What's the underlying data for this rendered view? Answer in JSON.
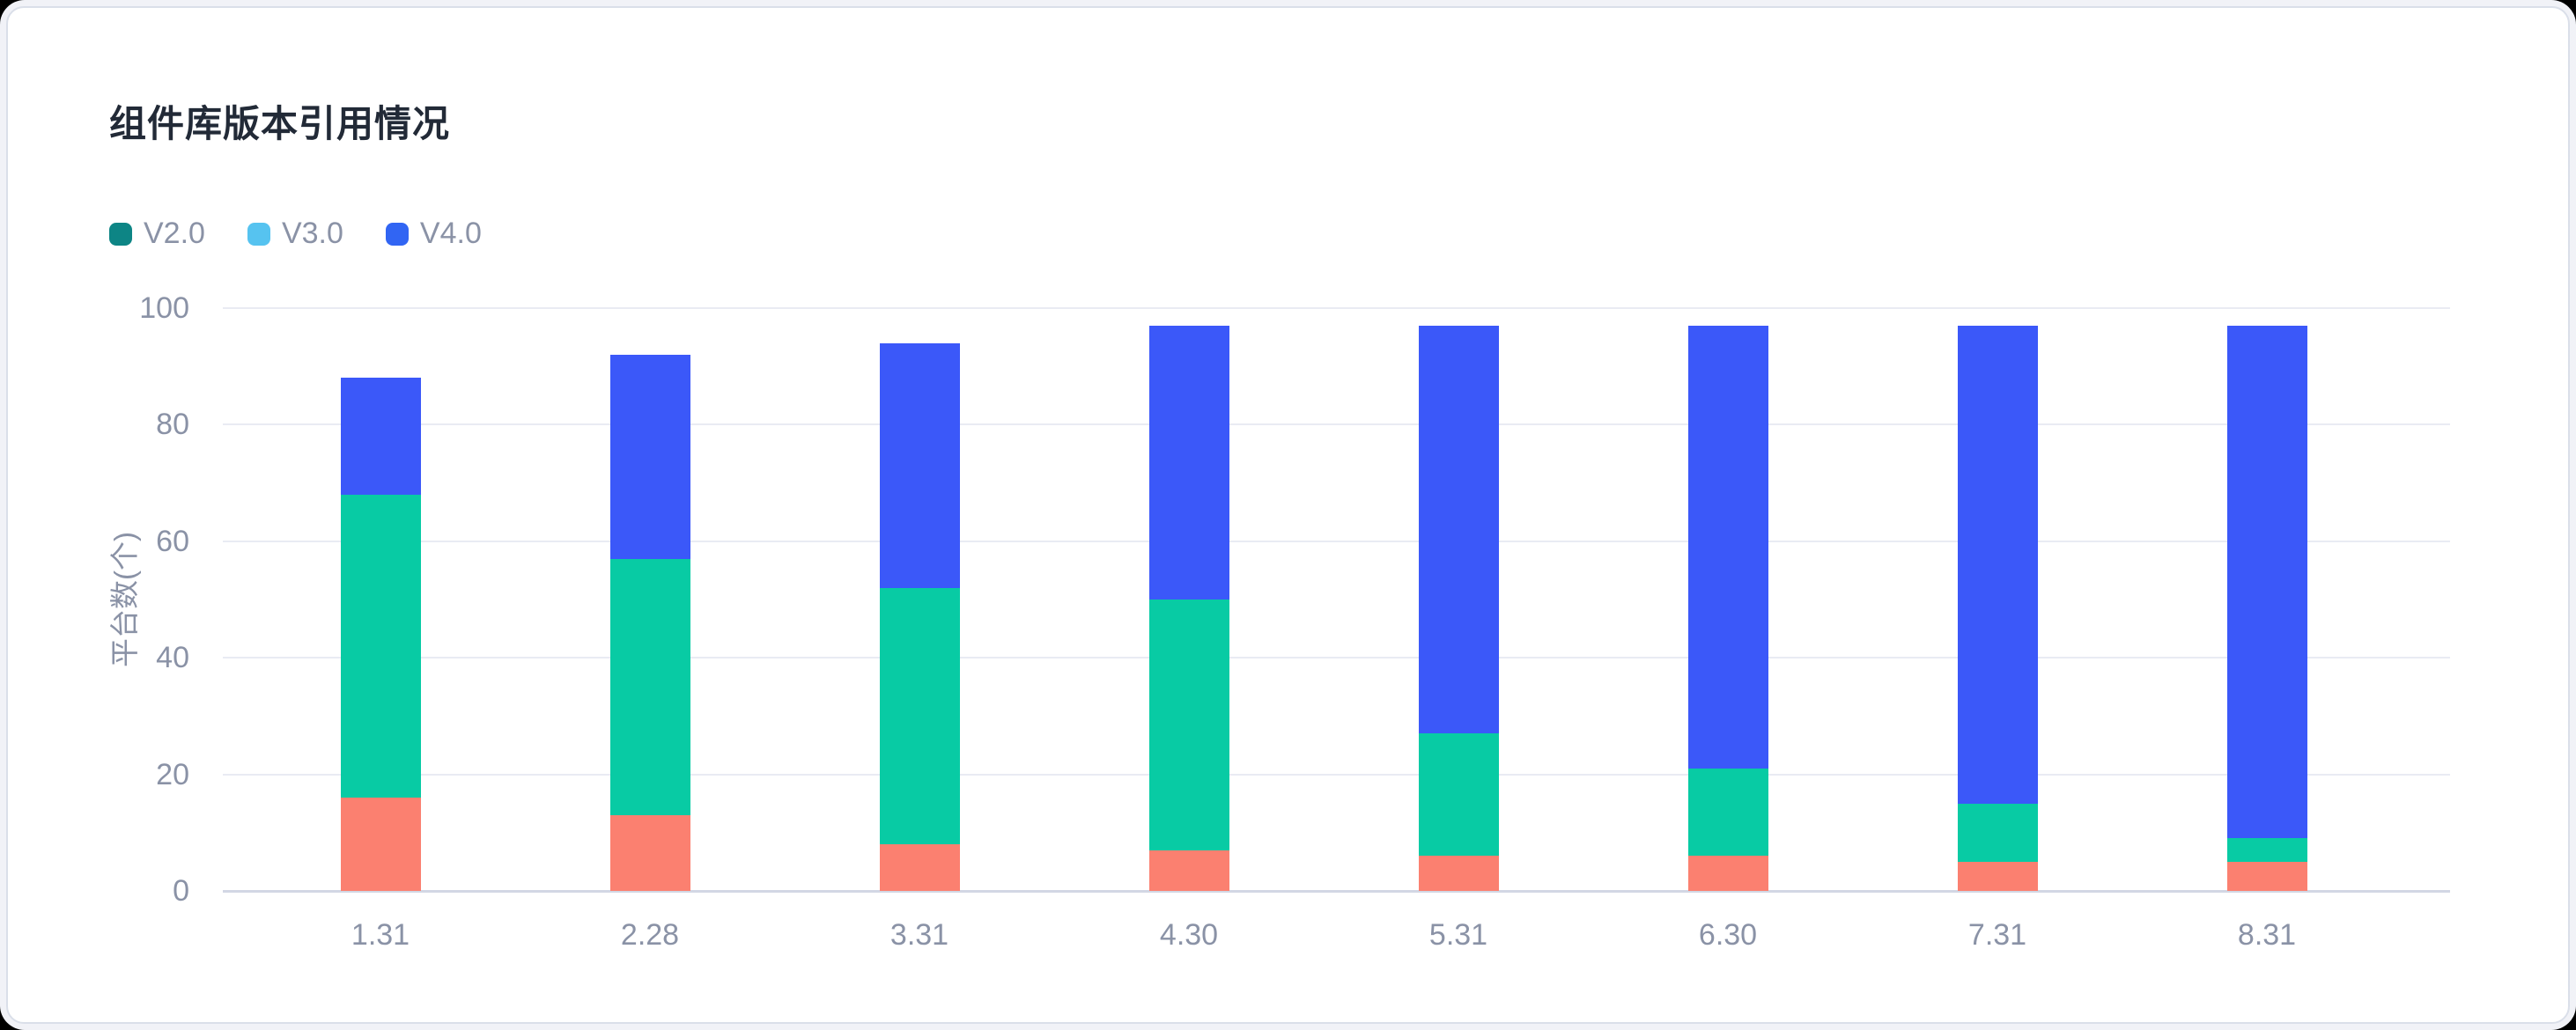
{
  "chart_data": {
    "type": "bar",
    "stacked": true,
    "title": "组件库版本引用情况",
    "ylabel": "平台数(个)",
    "ylim": [
      0,
      100
    ],
    "yticks": [
      0,
      20,
      40,
      60,
      80,
      100
    ],
    "grid": true,
    "legend_position": "top-left",
    "categories": [
      "1.31",
      "2.28",
      "3.31",
      "4.30",
      "5.31",
      "6.30",
      "7.31",
      "8.31"
    ],
    "legend": [
      {
        "label": "V2.0",
        "swatch_color": "#0D8585"
      },
      {
        "label": "V3.0",
        "swatch_color": "#56C3F0"
      },
      {
        "label": "V4.0",
        "swatch_color": "#3165F3"
      }
    ],
    "series": [
      {
        "name": "V2.0",
        "bar_color": "#FB8070",
        "values": [
          16,
          13,
          8,
          7,
          6,
          6,
          5,
          5
        ]
      },
      {
        "name": "V3.0",
        "bar_color": "#08CBA4",
        "values": [
          52,
          44,
          44,
          43,
          21,
          15,
          10,
          4
        ]
      },
      {
        "name": "V4.0",
        "bar_color": "#3B58F9",
        "values": [
          20,
          35,
          42,
          47,
          70,
          76,
          82,
          88
        ]
      }
    ],
    "totals": [
      88,
      92,
      94,
      97,
      97,
      97,
      97,
      97
    ]
  },
  "colors": {
    "title_text": "#222A37",
    "axis_text": "#8A92A6",
    "gridline": "#E9EBF3",
    "axis_line": "#D2D7E4",
    "card_background": "#FFFFFF",
    "card_border": "#DADFE9",
    "page_margin": "#F1F2F7"
  }
}
